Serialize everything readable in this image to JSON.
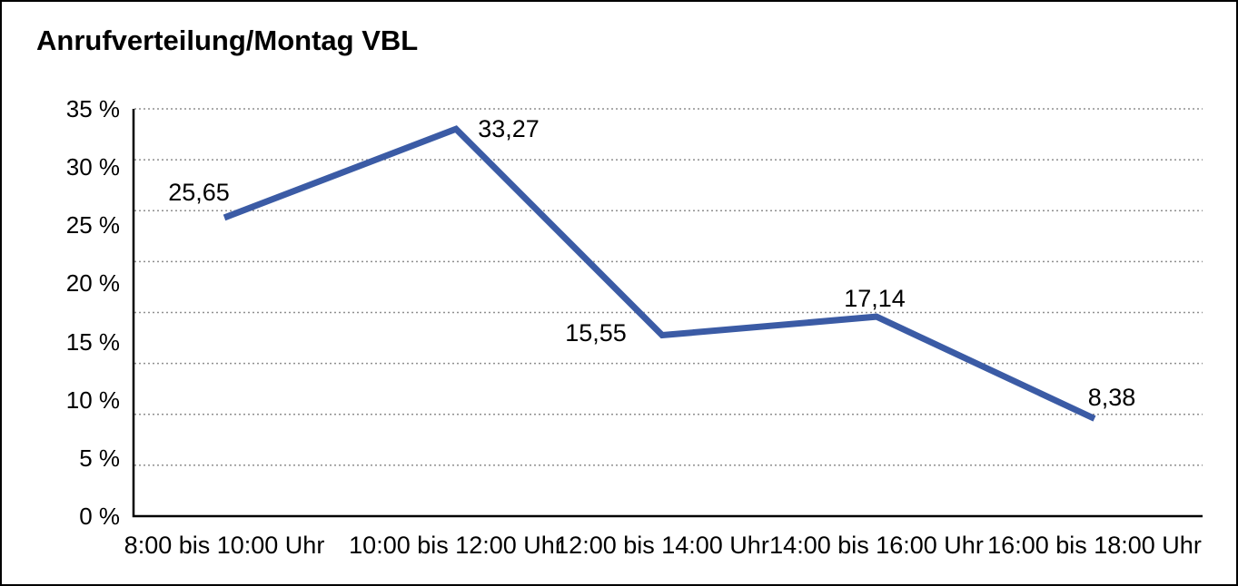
{
  "chart_data": {
    "type": "line",
    "title": "Anrufverteilung/Montag VBL",
    "categories": [
      "8:00 bis 10:00 Uhr",
      "10:00 bis 12:00 Uhr",
      "12:00 bis 14:00 Uhr",
      "14:00 bis 16:00 Uhr",
      "16:00 bis 18:00 Uhr"
    ],
    "values": [
      25.65,
      33.27,
      15.55,
      17.14,
      8.38
    ],
    "value_labels": [
      "25,65",
      "33,27",
      "15,55",
      "17,14",
      "8,38"
    ],
    "y_tick_values": [
      35,
      30,
      25,
      20,
      15,
      10,
      5,
      0
    ],
    "y_tick_labels": [
      "35 %",
      "30 %",
      "25 %",
      "20 %",
      "15 %",
      "10 %",
      "5 %",
      "0 %"
    ],
    "ylim": [
      0,
      35
    ],
    "xlabel": "",
    "ylabel": "",
    "legend": "none",
    "grid": "9 evenly spaced horizontal dotted gridlines, bottom line is solid axis",
    "marker": "none",
    "line_color": "#3B5BA5",
    "axis_color": "#000000",
    "gridline_color": "#8F8F8F",
    "text_color": "#000000",
    "decimal_separator": ","
  }
}
